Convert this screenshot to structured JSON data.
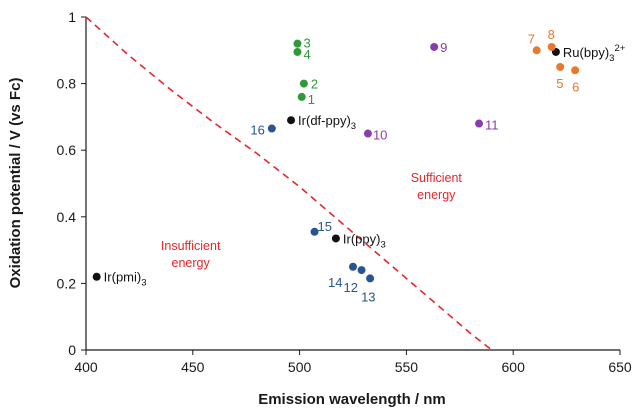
{
  "chart_data": {
    "type": "scatter",
    "title": "",
    "xlabel": "Emission wavelength / nm",
    "ylabel": "Oxidation potential / V (vs Fc)",
    "xlim": [
      400,
      650
    ],
    "ylim": [
      0,
      1
    ],
    "x_ticks": [
      400,
      450,
      500,
      550,
      600,
      650
    ],
    "y_ticks": [
      0,
      0.2,
      0.4,
      0.6,
      0.8,
      1
    ],
    "grid": false,
    "legend": "none",
    "colors": {
      "black": "#111111",
      "green": "#2e9a3a",
      "blue": "#27558f",
      "purple": "#8a3bb0",
      "orange": "#e8782a",
      "threshold": "#e8262b",
      "axis": "#1a1a1a"
    },
    "points": [
      {
        "label": "Ir(pmi)",
        "sub": "3",
        "sup": "",
        "x": 405,
        "y": 0.22,
        "color": "black"
      },
      {
        "label": "Ir(df-ppy)",
        "sub": "3",
        "sup": "",
        "x": 496,
        "y": 0.69,
        "color": "black"
      },
      {
        "label": "Ir(ppy)",
        "sub": "3",
        "sup": "",
        "x": 517,
        "y": 0.335,
        "color": "black"
      },
      {
        "label": "Ru(bpy)",
        "sub": "3",
        "sup": "2+",
        "x": 620,
        "y": 0.895,
        "color": "black"
      },
      {
        "label": "1",
        "sub": "",
        "sup": "",
        "x": 501,
        "y": 0.76,
        "color": "green"
      },
      {
        "label": "2",
        "sub": "",
        "sup": "",
        "x": 502,
        "y": 0.8,
        "color": "green"
      },
      {
        "label": "3",
        "sub": "",
        "sup": "",
        "x": 499,
        "y": 0.92,
        "color": "green"
      },
      {
        "label": "4",
        "sub": "",
        "sup": "",
        "x": 499,
        "y": 0.895,
        "color": "green"
      },
      {
        "label": "12",
        "sub": "",
        "sup": "",
        "x": 529,
        "y": 0.24,
        "color": "blue"
      },
      {
        "label": "13",
        "sub": "",
        "sup": "",
        "x": 533,
        "y": 0.215,
        "color": "blue"
      },
      {
        "label": "14",
        "sub": "",
        "sup": "",
        "x": 525,
        "y": 0.25,
        "color": "blue"
      },
      {
        "label": "15",
        "sub": "",
        "sup": "",
        "x": 507,
        "y": 0.355,
        "color": "blue"
      },
      {
        "label": "16",
        "sub": "",
        "sup": "",
        "x": 487,
        "y": 0.665,
        "color": "blue"
      },
      {
        "label": "9",
        "sub": "",
        "sup": "",
        "x": 563,
        "y": 0.91,
        "color": "purple"
      },
      {
        "label": "10",
        "sub": "",
        "sup": "",
        "x": 532,
        "y": 0.65,
        "color": "purple"
      },
      {
        "label": "11",
        "sub": "",
        "sup": "",
        "x": 584,
        "y": 0.68,
        "color": "purple"
      },
      {
        "label": "5",
        "sub": "",
        "sup": "",
        "x": 622,
        "y": 0.85,
        "color": "orange"
      },
      {
        "label": "6",
        "sub": "",
        "sup": "",
        "x": 629,
        "y": 0.84,
        "color": "orange"
      },
      {
        "label": "7",
        "sub": "",
        "sup": "",
        "x": 611,
        "y": 0.9,
        "color": "orange"
      },
      {
        "label": "8",
        "sub": "",
        "sup": "",
        "x": 618,
        "y": 0.91,
        "color": "orange"
      }
    ],
    "threshold_curve": {
      "style": "dashed",
      "color": "threshold",
      "x": [
        400,
        420,
        440,
        460,
        480,
        500,
        520,
        540,
        560,
        580,
        590
      ],
      "y": [
        1.0,
        0.885,
        0.78,
        0.682,
        0.59,
        0.49,
        0.38,
        0.27,
        0.16,
        0.05,
        0.0
      ]
    },
    "annotations": [
      {
        "lines": [
          "Insufficient",
          "energy"
        ],
        "x": 449,
        "y": 0.3,
        "color": "threshold"
      },
      {
        "lines": [
          "Sufficient",
          "energy"
        ],
        "x": 564,
        "y": 0.505,
        "color": "threshold"
      }
    ]
  }
}
